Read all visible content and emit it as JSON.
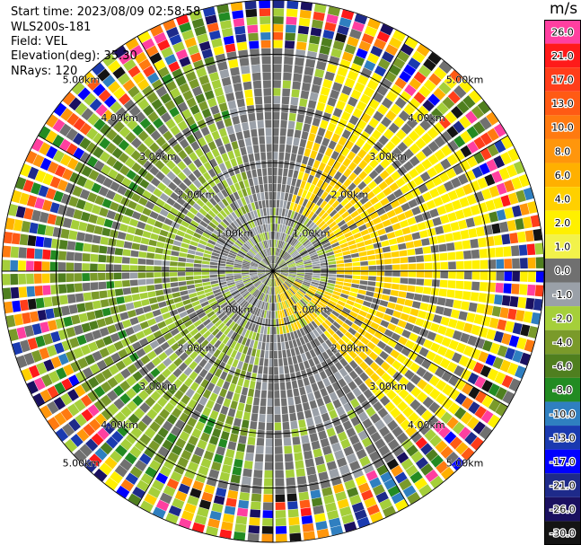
{
  "header": {
    "start_time": "Start time: 2023/08/09 02:58:58",
    "instrument": "WLS200s-181",
    "field": "Field: VEL",
    "elevation": "Elevation(deg): 35.30",
    "nrays": "NRays: 120"
  },
  "colorbar": {
    "unit": "m/s",
    "levels": [
      {
        "label": "26.0",
        "color": "#ff3fa0"
      },
      {
        "label": "21.0",
        "color": "#ff1a1a"
      },
      {
        "label": "17.0",
        "color": "#ff3d1a"
      },
      {
        "label": "13.0",
        "color": "#ff5a14"
      },
      {
        "label": "10.0",
        "color": "#ff7a10"
      },
      {
        "label": "8.0",
        "color": "#ff960c"
      },
      {
        "label": "6.0",
        "color": "#ffb000"
      },
      {
        "label": "4.0",
        "color": "#ffd000"
      },
      {
        "label": "2.0",
        "color": "#fff000"
      },
      {
        "label": "1.0",
        "color": "#f2f24a"
      },
      {
        "label": "0.0",
        "color": "#707070"
      },
      {
        "label": "-1.0",
        "color": "#9aa0a8"
      },
      {
        "label": "-2.0",
        "color": "#a5cf3a"
      },
      {
        "label": "-4.0",
        "color": "#7a9a2a"
      },
      {
        "label": "-6.0",
        "color": "#4f7f1f"
      },
      {
        "label": "-8.0",
        "color": "#228b22"
      },
      {
        "label": "-10.0",
        "color": "#2f7fc0"
      },
      {
        "label": "-13.0",
        "color": "#1a3ab0"
      },
      {
        "label": "-17.0",
        "color": "#0000ff"
      },
      {
        "label": "-21.0",
        "color": "#1e2a8a"
      },
      {
        "label": "-26.0",
        "color": "#1a1060"
      },
      {
        "label": "-30.0",
        "color": "#141414"
      }
    ]
  },
  "chart_data": {
    "type": "heatmap",
    "projection": "ppi-polar",
    "field": "VEL",
    "nrays": 120,
    "max_range_km": 5.0,
    "range_rings_km": [
      1,
      2,
      3,
      4,
      5
    ],
    "ring_labels": [
      "1.00km",
      "2.00km",
      "3.00km",
      "4.00km",
      "5.00km"
    ],
    "azimuth_lines_deg": [
      0,
      30,
      60,
      90,
      120,
      150,
      180,
      210,
      240,
      270,
      300,
      330
    ],
    "pattern_summary": {
      "positive_sector_deg": [
        20,
        130
      ],
      "negative_sector_deg": [
        200,
        340
      ],
      "near_zero_inner_km": 1.0
    }
  }
}
